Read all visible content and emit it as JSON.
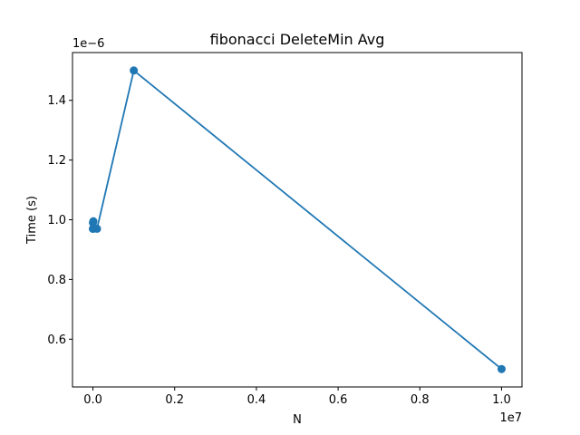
{
  "chart_data": {
    "type": "line",
    "title": "fibonacci DeleteMin Avg",
    "xlabel": "N",
    "ylabel": "Time (s)",
    "x_offset_label": "1e7",
    "y_offset_label": "1e−6",
    "xlim": [
      -500000,
      10500000
    ],
    "ylim": [
      4.4e-07,
      1.56e-06
    ],
    "x_ticks": [
      0,
      2000000,
      4000000,
      6000000,
      8000000,
      10000000
    ],
    "x_tick_labels": [
      "0.0",
      "0.2",
      "0.4",
      "0.6",
      "0.8",
      "1.0"
    ],
    "y_ticks": [
      6e-07,
      8e-07,
      1e-06,
      1.2e-06,
      1.4e-06
    ],
    "y_tick_labels": [
      "0.6",
      "0.8",
      "1.0",
      "1.2",
      "1.4"
    ],
    "grid": false,
    "series": [
      {
        "color": "#1f77b4",
        "marker": "circle",
        "x": [
          10,
          100,
          1000,
          10000,
          100000,
          1000000,
          10000000
        ],
        "y": [
          9.7e-07,
          9.9e-07,
          9.7e-07,
          9.95e-07,
          9.7e-07,
          1.5e-06,
          5e-07
        ]
      }
    ]
  }
}
